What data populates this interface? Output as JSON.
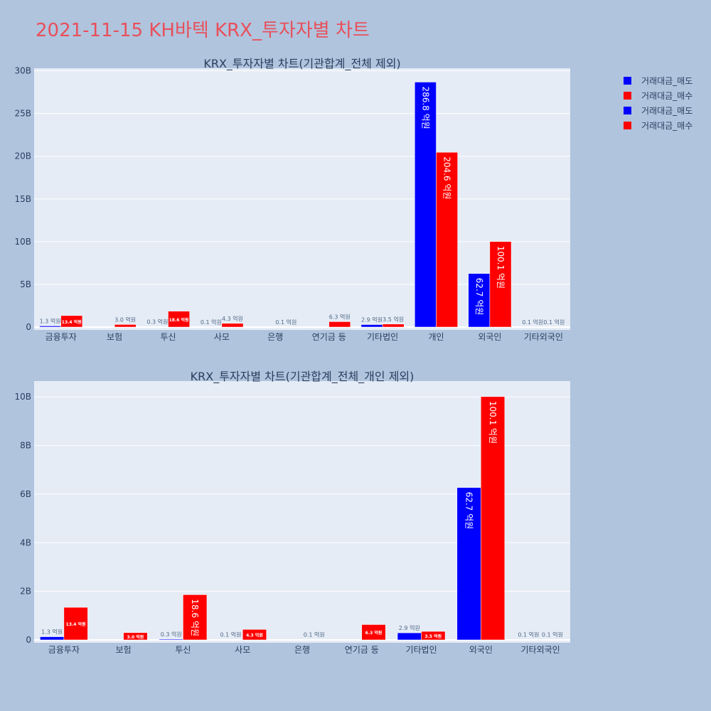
{
  "page_title": "2021-11-15 KH바텍 KRX_투자자별 차트",
  "colors": {
    "background": "#b0c4de",
    "plot_bg": "#e5ecf6",
    "sell": "#0000ff",
    "buy": "#ff0000",
    "title": "#e8505b",
    "text": "#2a3f5f"
  },
  "legend": {
    "entries": [
      {
        "label": "거래대금_매도",
        "color": "#0000ff"
      },
      {
        "label": "거래대금_매수",
        "color": "#ff0000"
      },
      {
        "label": "거래대금_매도",
        "color": "#0000ff"
      },
      {
        "label": "거래대금_매수",
        "color": "#ff0000"
      }
    ]
  },
  "chart_data": [
    {
      "type": "bar",
      "title": "KRX_투자자별 차트(기관합계_전체 제외)",
      "categories": [
        "금융투자",
        "보험",
        "투신",
        "사모",
        "은행",
        "연기금 등",
        "기타법인",
        "개인",
        "외국인",
        "기타외국인"
      ],
      "ylim": [
        0,
        30.3
      ],
      "y_unit_suffix": "B",
      "yticks": [
        0,
        5,
        10,
        15,
        20,
        25,
        30
      ],
      "ytick_labels": [
        "0",
        "5B",
        "10B",
        "15B",
        "20B",
        "25B",
        "30B"
      ],
      "grid": true,
      "legend_position": "right",
      "series": [
        {
          "name": "거래대금_매도",
          "color": "#0000ff",
          "values": [
            0.13,
            0,
            0.03,
            0.01,
            0,
            0,
            0.29,
            28.68,
            6.27,
            0.01
          ],
          "labels": [
            "1.3 억원",
            "",
            "0.3 억원",
            "0.1 억원",
            "",
            "",
            "2.9 억원",
            "286.8 억원",
            "62.7 억원",
            "0.1 억원"
          ]
        },
        {
          "name": "거래대금_매수",
          "color": "#ff0000",
          "values": [
            1.34,
            0.3,
            1.86,
            0.43,
            0.01,
            0.63,
            0.35,
            20.46,
            10.01,
            0.01
          ],
          "labels": [
            "13.4 억원",
            "3.0 억원",
            "18.6 억원",
            "4.3 억원",
            "0.1 억원",
            "6.3 억원",
            "3.5 억원",
            "204.6 억원",
            "100.1 억원",
            "0.1 억원"
          ]
        }
      ]
    },
    {
      "type": "bar",
      "title": "KRX_투자자별 차트(기관합계_전체_개인 제외)",
      "categories": [
        "금융투자",
        "보험",
        "투신",
        "사모",
        "은행",
        "연기금 등",
        "기타법인",
        "외국인",
        "기타외국인"
      ],
      "ylim": [
        0,
        10.65
      ],
      "y_unit_suffix": "B",
      "yticks": [
        0,
        2,
        4,
        6,
        8,
        10
      ],
      "ytick_labels": [
        "0",
        "2B",
        "4B",
        "6B",
        "8B",
        "10B"
      ],
      "grid": true,
      "legend_position": "right",
      "series": [
        {
          "name": "거래대금_매도",
          "color": "#0000ff",
          "values": [
            0.13,
            0,
            0.03,
            0.01,
            0,
            0,
            0.29,
            6.27,
            0.01
          ],
          "labels": [
            "1.3 억원",
            "",
            "0.3 억원",
            "0.1 억원",
            "",
            "",
            "2.9 억원",
            "62.7 억원",
            "0.1 억원"
          ]
        },
        {
          "name": "거래대금_매수",
          "color": "#ff0000",
          "values": [
            1.34,
            0.3,
            1.86,
            0.43,
            0.01,
            0.63,
            0.35,
            10.01,
            0.01
          ],
          "labels": [
            "13.4 억원",
            "3.0 억원",
            "18.6 억원",
            "4.3 억원",
            "0.1 억원",
            "6.3 억원",
            "3.5 억원",
            "100.1 억원",
            "0.1 억원"
          ]
        }
      ]
    }
  ]
}
